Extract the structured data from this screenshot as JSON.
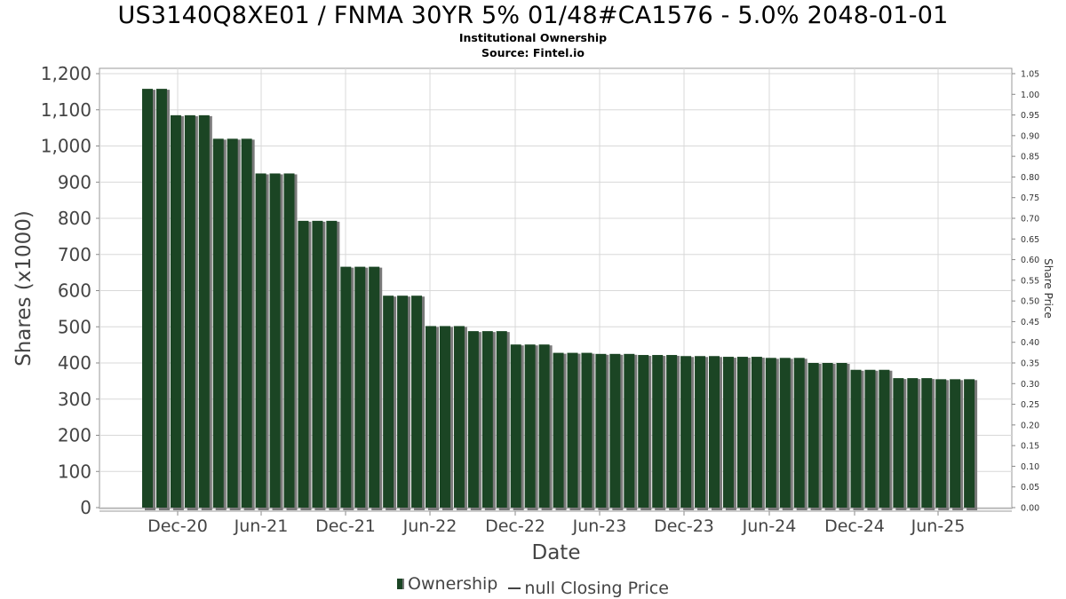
{
  "header": {
    "title": "US3140Q8XE01 / FNMA 30YR 5% 01/48#CA1576 - 5.0% 2048-01-01",
    "subtitle1": "Institutional Ownership",
    "subtitle2": "Source: Fintel.io"
  },
  "legend": {
    "ownership": "Ownership",
    "closing_price": "null Closing Price"
  },
  "colors": {
    "bar": "#1b4524",
    "bar_shadow": "#7a7a7a",
    "grid": "#d8d8d8"
  },
  "chart_data": {
    "type": "bar",
    "xlabel": "Date",
    "ylabel": "Shares (x1000)",
    "y2label": "Share Price",
    "ylim": [
      0,
      1200
    ],
    "y2lim": [
      0,
      1.05
    ],
    "yticks": [
      "0",
      "100",
      "200",
      "300",
      "400",
      "500",
      "600",
      "700",
      "800",
      "900",
      "1,000",
      "1,100",
      "1,200"
    ],
    "y2ticks": [
      "0.00",
      "0.05",
      "0.10",
      "0.15",
      "0.20",
      "0.25",
      "0.30",
      "0.35",
      "0.40",
      "0.45",
      "0.50",
      "0.55",
      "0.60",
      "0.65",
      "0.70",
      "0.75",
      "0.80",
      "0.85",
      "0.90",
      "0.95",
      "1.00",
      "1.05"
    ],
    "xticks": [
      "Dec-20",
      "Jun-21",
      "Dec-21",
      "Jun-22",
      "Dec-22",
      "Jun-23",
      "Dec-23",
      "Jun-24",
      "Dec-24",
      "Jun-25"
    ],
    "grid": true,
    "legend_position": "bottom",
    "series": [
      {
        "name": "Ownership",
        "values": [
          1158,
          1158,
          1085,
          1085,
          1085,
          1020,
          1020,
          1020,
          924,
          924,
          924,
          793,
          793,
          793,
          666,
          666,
          666,
          586,
          586,
          586,
          502,
          502,
          502,
          488,
          488,
          488,
          451,
          451,
          451,
          428,
          428,
          428,
          425,
          425,
          425,
          422,
          422,
          422,
          419,
          419,
          419,
          417,
          417,
          417,
          414,
          414,
          414,
          400,
          400,
          400,
          381,
          381,
          381,
          358,
          358,
          358,
          355,
          355,
          355
        ]
      }
    ]
  }
}
